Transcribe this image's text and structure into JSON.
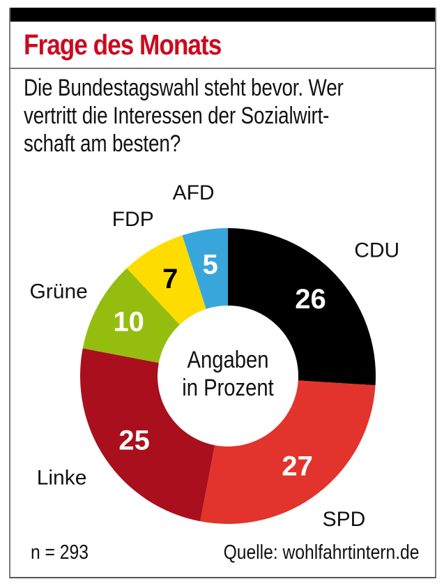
{
  "header": {
    "title": "Frage des Monats",
    "question_lines": [
      "Die Bundestagswahl steht bevor. Wer",
      "vertritt die Interessen der Sozialwirt-",
      "schaft am besten?"
    ]
  },
  "colors": {
    "title": "#cc0a1e",
    "CDU": "#000000",
    "SPD": "#e2342c",
    "Linke": "#a90f1c",
    "Grüne": "#95bd10",
    "FDP": "#ffdc00",
    "AFD": "#39a6db"
  },
  "chart_data": {
    "type": "pie",
    "variant": "donut",
    "title": "Frage des Monats",
    "subtitle": "Die Bundestagswahl steht bevor. Wer vertritt die Interessen der Sozialwirtschaft am besten?",
    "center_label": [
      "Angaben",
      "in Prozent"
    ],
    "unit": "%",
    "start": "12 o'clock",
    "direction": "clockwise",
    "slices": [
      {
        "name": "CDU",
        "value": 26,
        "color": "#000000",
        "value_color": "#ffffff"
      },
      {
        "name": "SPD",
        "value": 27,
        "color": "#e2342c",
        "value_color": "#ffffff"
      },
      {
        "name": "Linke",
        "value": 25,
        "color": "#a90f1c",
        "value_color": "#ffffff"
      },
      {
        "name": "Grüne",
        "value": 10,
        "color": "#95bd10",
        "value_color": "#ffffff"
      },
      {
        "name": "FDP",
        "value": 7,
        "color": "#ffdc00",
        "value_color": "#000000"
      },
      {
        "name": "AFD",
        "value": 5,
        "color": "#39a6db",
        "value_color": "#ffffff"
      }
    ]
  },
  "footer": {
    "sample_size": "n = 293",
    "source": "Quelle: wohlfahrtintern.de"
  }
}
